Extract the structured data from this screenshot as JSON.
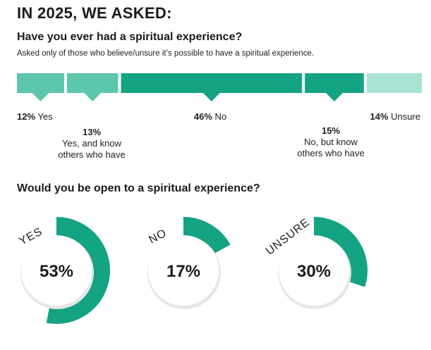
{
  "header": {
    "title": "IN 2025, WE ASKED:"
  },
  "q1": {
    "title": "Have you ever had a spiritual experience?",
    "note": "Asked only of those who believe/unsure it’s possible to have a spiritual experience."
  },
  "q2": {
    "title": "Would you be open to a spiritual experience?"
  },
  "colors": {
    "accent": "#14a383",
    "mid": "#5cc7ad",
    "light": "#a8e3d3"
  },
  "chart_data": [
    {
      "type": "bar",
      "title": "Have you ever had a spiritual experience?",
      "unit": "%",
      "categories": [
        "Yes",
        "Yes, and know others who have",
        "No",
        "No, but know others who have",
        "Unsure"
      ],
      "values": [
        12,
        13,
        46,
        15,
        14
      ],
      "value_labels": [
        "12%",
        "13%",
        "46%",
        "15%",
        "14%"
      ],
      "label_lines": [
        [
          "Yes"
        ],
        [
          "Yes, and know",
          "others who have"
        ],
        [
          "No"
        ],
        [
          "No, but know",
          "others who have"
        ],
        [
          "Unsure"
        ]
      ]
    },
    {
      "type": "pie",
      "title": "Would you be open to a spiritual experience?",
      "categories": [
        "YES",
        "NO",
        "UNSURE"
      ],
      "values": [
        53,
        17,
        30
      ],
      "value_labels": [
        "53%",
        "17%",
        "30%"
      ]
    }
  ]
}
